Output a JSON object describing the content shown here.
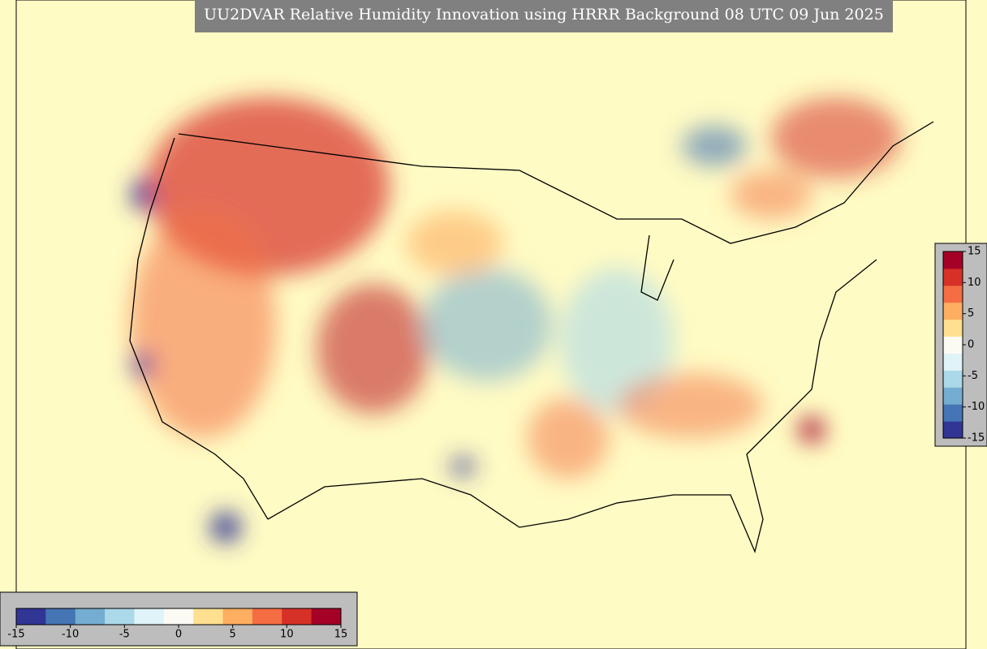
{
  "title": "UU2DVAR Relative Humidity Innovation using HRRR Background 08 UTC 09 Jun 2025",
  "colormap": [
    "#313695",
    "#4575b4",
    "#74add1",
    "#abd9e9",
    "#e0f3f8",
    "#fbfbf4",
    "#fee090",
    "#fdae61",
    "#f46d43",
    "#d73027",
    "#a50026"
  ],
  "colorbars": [
    {
      "orientation": "horizontal",
      "lim": [
        -15,
        15
      ],
      "ticks": [
        -15,
        -10,
        -5,
        0,
        5,
        10,
        15
      ]
    },
    {
      "orientation": "vertical",
      "lim": [
        -15,
        15
      ],
      "ticks": [
        -15,
        -10,
        -5,
        0,
        5,
        10,
        15
      ]
    }
  ]
}
